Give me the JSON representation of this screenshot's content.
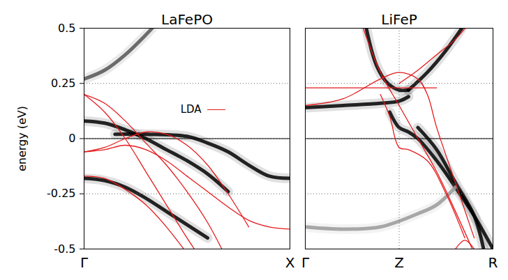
{
  "chart_data": [
    {
      "type": "line",
      "title": "LaFePO",
      "y_label": "energy (eV)",
      "xlim": [
        0,
        1
      ],
      "xticks": [
        {
          "value": 0,
          "label": "Γ"
        },
        {
          "value": 1,
          "label": "X"
        }
      ],
      "ylim": [
        -0.5,
        0.5
      ],
      "yticks": [
        -0.5,
        -0.25,
        0,
        0.25,
        0.5
      ],
      "grid": true,
      "reference_line": 0,
      "legend": "top-right",
      "series": [
        {
          "name": "LDA",
          "color": "#e41a1c",
          "bands": [
            {
              "x": [
                0,
                0.1,
                0.2,
                0.3,
                0.4,
                0.5,
                0.55
              ],
              "y": [
                0.2,
                0.12,
                0.0,
                -0.15,
                -0.3,
                -0.45,
                -0.52
              ]
            },
            {
              "x": [
                0,
                0.1,
                0.2,
                0.3,
                0.4,
                0.5,
                0.6,
                0.68
              ],
              "y": [
                0.2,
                0.16,
                0.08,
                -0.02,
                -0.12,
                -0.24,
                -0.38,
                -0.52
              ]
            },
            {
              "x": [
                0,
                0.1,
                0.2,
                0.3,
                0.4,
                0.5,
                0.6,
                0.7,
                0.8,
                0.9,
                1
              ],
              "y": [
                -0.06,
                -0.05,
                -0.03,
                -0.05,
                -0.1,
                -0.17,
                -0.24,
                -0.31,
                -0.37,
                -0.4,
                -0.41
              ]
            },
            {
              "x": [
                0,
                0.1,
                0.2,
                0.3,
                0.4,
                0.5,
                0.6,
                0.7,
                0.8
              ],
              "y": [
                -0.06,
                -0.04,
                0.0,
                0.03,
                0.02,
                -0.03,
                -0.12,
                -0.25,
                -0.4
              ]
            },
            {
              "x": [
                0,
                0.1,
                0.2,
                0.3,
                0.4,
                0.5
              ],
              "y": [
                -0.17,
                -0.18,
                -0.23,
                -0.3,
                -0.4,
                -0.52
              ]
            }
          ]
        }
      ],
      "spectral": [
        {
          "color": "#555555",
          "x": [
            0,
            0.1,
            0.2,
            0.3,
            0.35
          ],
          "y": [
            0.27,
            0.31,
            0.38,
            0.47,
            0.52
          ]
        },
        {
          "color": "#000000",
          "x": [
            0,
            0.1,
            0.2,
            0.3,
            0.4,
            0.5,
            0.6,
            0.7
          ],
          "y": [
            0.08,
            0.07,
            0.04,
            0.0,
            -0.05,
            -0.1,
            -0.16,
            -0.24
          ]
        },
        {
          "color": "#000000",
          "x": [
            0.15,
            0.3,
            0.5,
            0.6,
            0.7,
            0.8,
            0.9,
            1
          ],
          "y": [
            0.02,
            0.02,
            0.01,
            -0.02,
            -0.06,
            -0.12,
            -0.17,
            -0.18
          ]
        },
        {
          "color": "#000000",
          "x": [
            0,
            0.1,
            0.2,
            0.3,
            0.4,
            0.5,
            0.6
          ],
          "y": [
            -0.18,
            -0.19,
            -0.22,
            -0.27,
            -0.33,
            -0.39,
            -0.45
          ]
        }
      ]
    },
    {
      "type": "line",
      "title": "LiFeP",
      "tick_labels": "x",
      "xlim": [
        0,
        1
      ],
      "xticks": [
        {
          "value": 0,
          "label": "Γ"
        },
        {
          "value": 0.5,
          "label": "Z"
        },
        {
          "value": 1,
          "label": "R"
        }
      ],
      "ylim": [
        -0.5,
        0.5
      ],
      "yticks": [
        -0.5,
        -0.25,
        0,
        0.25,
        0.5
      ],
      "grid": true,
      "reference_line": 0,
      "series": [
        {
          "name": "LDA",
          "color": "#e41a1c",
          "bands": [
            {
              "x": [
                0,
                0.2,
                0.4,
                0.5,
                0.6,
                0.7
              ],
              "y": [
                0.23,
                0.23,
                0.23,
                0.23,
                0.23,
                0.23
              ]
            },
            {
              "x": [
                0.3,
                0.4,
                0.5,
                0.6,
                0.7,
                0.8,
                0.9
              ],
              "y": [
                0.52,
                0.3,
                0.15,
                0.0,
                -0.15,
                -0.33,
                -0.52
              ]
            },
            {
              "x": [
                0,
                0.2,
                0.4,
                0.5,
                0.6,
                0.65,
                0.7,
                0.8,
                0.9
              ],
              "y": [
                0.15,
                0.18,
                0.27,
                0.3,
                0.27,
                0.2,
                0.05,
                -0.2,
                -0.45
              ]
            },
            {
              "x": [
                0.4,
                0.45,
                0.5,
                0.55,
                0.65,
                0.75,
                0.85
              ],
              "y": [
                0.2,
                0.1,
                -0.04,
                -0.05,
                -0.1,
                -0.25,
                -0.45
              ]
            },
            {
              "x": [
                0.5,
                0.6,
                0.7,
                0.8,
                0.87
              ],
              "y": [
                0.25,
                0.31,
                0.38,
                0.45,
                0.52
              ]
            },
            {
              "x": [
                0.8,
                0.85,
                0.9
              ],
              "y": [
                -0.5,
                -0.46,
                -0.5
              ]
            }
          ]
        }
      ],
      "spectral": [
        {
          "color": "#000000",
          "x": [
            0,
            0.2,
            0.4,
            0.5,
            0.55
          ],
          "y": [
            0.14,
            0.15,
            0.16,
            0.17,
            0.19
          ]
        },
        {
          "color": "#000000",
          "x": [
            0.32,
            0.38,
            0.44,
            0.5,
            0.55
          ],
          "y": [
            0.52,
            0.33,
            0.25,
            0.22,
            0.22
          ]
        },
        {
          "color": "#000000",
          "x": [
            0.55,
            0.65,
            0.75,
            0.85
          ],
          "y": [
            0.22,
            0.3,
            0.4,
            0.52
          ]
        },
        {
          "color": "#000000",
          "x": [
            0.45,
            0.5,
            0.55,
            0.6,
            0.7,
            0.8,
            0.9,
            1
          ],
          "y": [
            0.12,
            0.05,
            0.03,
            0.0,
            -0.1,
            -0.22,
            -0.35,
            -0.5
          ]
        },
        {
          "color": "#000000",
          "x": [
            0.6,
            0.7,
            0.8,
            0.9,
            0.95
          ],
          "y": [
            0.05,
            -0.05,
            -0.2,
            -0.35,
            -0.5
          ]
        },
        {
          "color": "#999999",
          "x": [
            0,
            0.2,
            0.4,
            0.6,
            0.7,
            0.8
          ],
          "y": [
            -0.4,
            -0.41,
            -0.4,
            -0.34,
            -0.3,
            -0.22
          ]
        }
      ]
    }
  ]
}
